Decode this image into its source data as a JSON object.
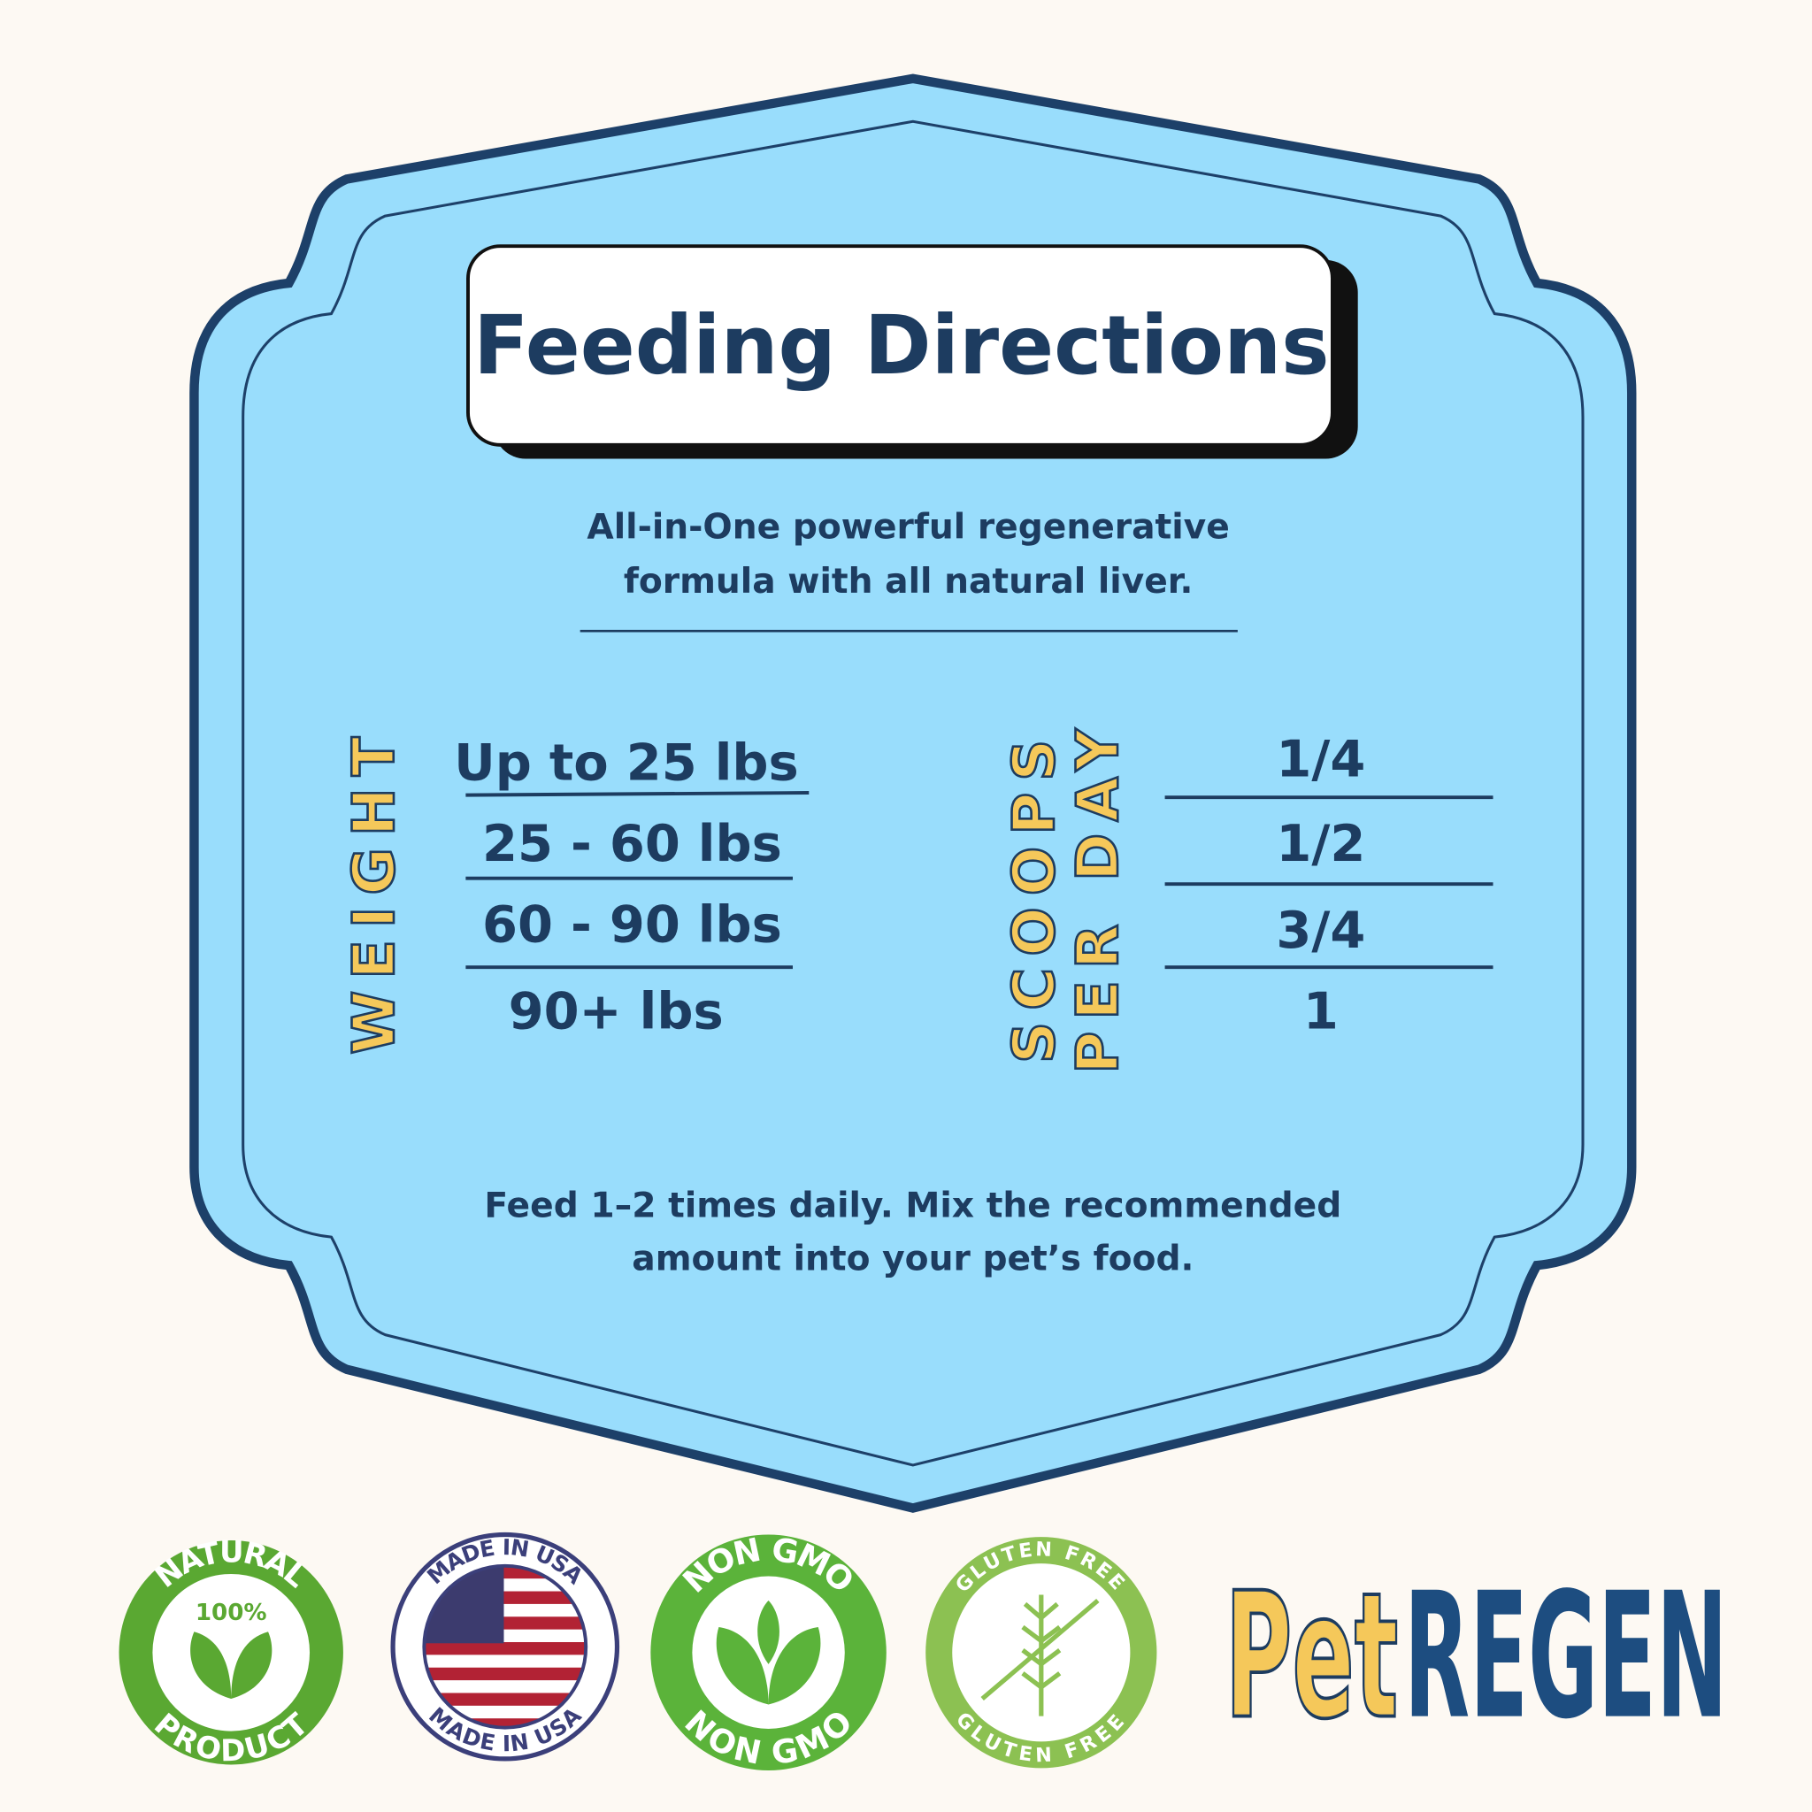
{
  "header": {
    "title": "Feeding Directions"
  },
  "intro": [
    "All-in-One powerful regenerative",
    "formula with all natural liver."
  ],
  "table": {
    "weight_label": "WEIGHT",
    "scoops_label": [
      "SCOOPS",
      "PER DAY"
    ],
    "rows": [
      [
        "Up to 25 lbs",
        "1/4"
      ],
      [
        "25 - 60 lbs",
        "1/2"
      ],
      [
        "60 - 90 lbs",
        "3/4"
      ],
      [
        "90+ lbs",
        "1"
      ]
    ]
  },
  "note": [
    "Feed 1–2 times daily. Mix the recommended",
    "amount into your pet’s food."
  ],
  "badges": [
    {
      "top": "NATURAL",
      "center": "100%",
      "bottom": "PRODUCT"
    },
    {
      "top": "MADE IN USA",
      "bottom": "MADE IN USA"
    },
    {
      "top": "NON GMO",
      "bottom": "NON GMO"
    },
    {
      "top": "GLUTEN FREE",
      "bottom": "GLUTEN FREE"
    }
  ],
  "logo": {
    "left": "Pet",
    "right": "REGEN"
  }
}
